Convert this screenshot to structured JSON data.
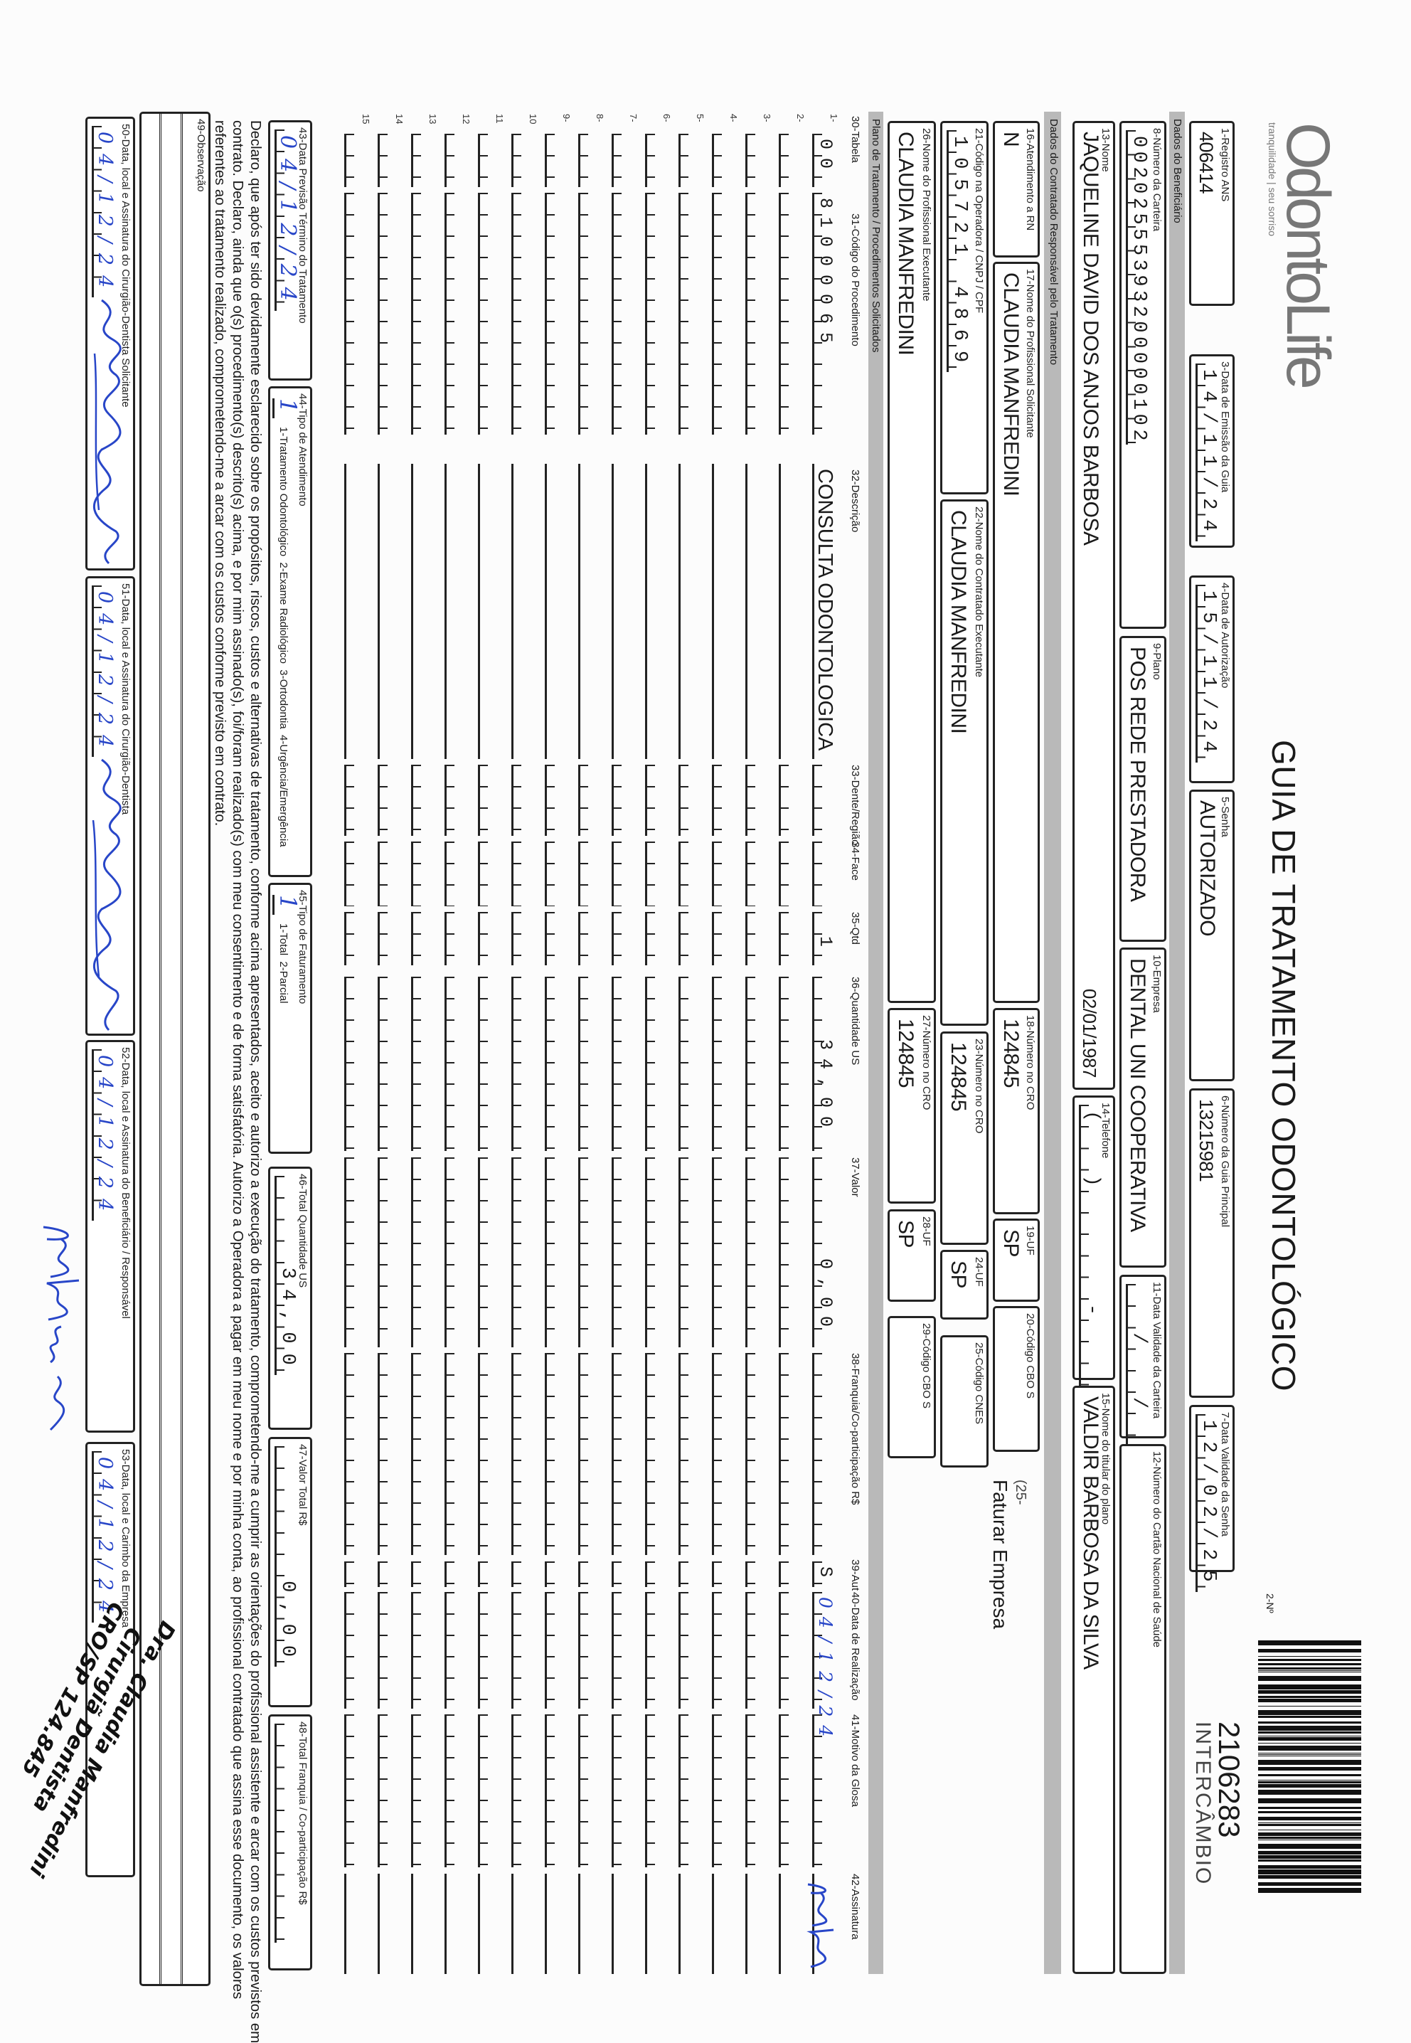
{
  "header": {
    "logo": "OdontoLife",
    "logo_tagline": "tranquilidade | seu sorriso",
    "title": "GUIA DE TRATAMENTO ODONTOLÓGICO",
    "number_label": "2-Nº",
    "guide_number": "2106283",
    "guide_type": "INTERCÂMBIO",
    "registro_ans": {
      "label": "1-Registro ANS",
      "value": "406414"
    },
    "data_emissao": {
      "label": "3-Data de Emissão da Guia",
      "value": "14/11/24"
    },
    "data_autorizacao": {
      "label": "4-Data de Autorização",
      "value": "15/11/24"
    },
    "senha": {
      "label": "5-Senha",
      "value": "AUTORIZADO"
    },
    "guia_principal": {
      "label": "6-Número da Guia Principal",
      "value": "13215981"
    },
    "validade_senha": {
      "label": "7-Data Validade da Senha",
      "value": "12/02/25"
    }
  },
  "beneficiario": {
    "section": "Dados do Beneficiário",
    "carteira": {
      "label": "8-Número da Carteira",
      "value": "00202555393200000102"
    },
    "plano": {
      "label": "9-Plano",
      "value": "POS REDE PRESTADORA"
    },
    "empresa": {
      "label": "10-Empresa",
      "value": "DENTAL UNI COOPERATIVA"
    },
    "validade_carteira": {
      "label": "11-Data Validade da Carteira",
      "value": "  /  /  "
    },
    "cns": {
      "label": "12-Número do Cartão Nacional de Saúde",
      "value": ""
    },
    "nome": {
      "label": "13-Nome",
      "value": "JAQUELINE DAVID DOS ANJOS BARBOSA"
    },
    "nascimento": "02/01/1987",
    "telefone": {
      "label": "14-Telefone",
      "value": "(  )     -    "
    },
    "titular": {
      "label": "15-Nome do titular do plano",
      "value": "VALDIR BARBOSA DA SILVA"
    }
  },
  "contratado": {
    "section": "Dados do Contratado Responsável pelo Tratamento",
    "rn": {
      "label": "16-Atendimento a RN",
      "value": "N"
    },
    "solicitante": {
      "label": "17-Nome do Profissional Solicitante",
      "value": "CLAUDIA MANFREDINI"
    },
    "cro_solicitante": {
      "label": "18-Número no CRO",
      "value": "124845"
    },
    "uf_solicitante": {
      "label": "19-UF",
      "value": "SP"
    },
    "cbo_solicitante": {
      "label": "20-Código CBO S",
      "value": ""
    },
    "note_code": "(25-",
    "note": "Faturar Empresa",
    "codigo_operadora": {
      "label": "21-Código na Operadora / CNPJ / CPF",
      "value": "105721 4869"
    },
    "contratado_executante": {
      "label": "22-Nome do Contratado Executante",
      "value": "CLAUDIA MANFREDINI"
    },
    "cro_contratado": {
      "label": "23-Número no CRO",
      "value": "124845"
    },
    "uf_contratado": {
      "label": "24-UF",
      "value": "SP"
    },
    "cnes": {
      "label": "25-Código CNES",
      "value": ""
    },
    "executante": {
      "label": "26-Nome do Profissional Executante",
      "value": "CLAUDIA MANFREDINI"
    },
    "cro_executante": {
      "label": "27-Número no CRO",
      "value": "124845"
    },
    "uf_executante": {
      "label": "28-UF",
      "value": "SP"
    },
    "cbo_executante": {
      "label": "29-Código CBO S",
      "value": ""
    }
  },
  "plano_tratamento": {
    "section": "Plano de Tratamento / Procedimentos Solicitados",
    "columns": [
      "30-Tabela",
      "31-Código do Procedimento",
      "32-Descrição",
      "33-Dente/Região",
      "34-Face",
      "35-Qtd",
      "36-Quantidade US",
      "37-Valor",
      "38-Franquia/Co-participação R$",
      "39-Aut",
      "40-Data de Realização",
      "41-Motivo da Glosa",
      "42-Assinatura"
    ],
    "rows": [
      {
        "number": "1-",
        "tabela": "00",
        "codigo": "81000065",
        "descricao": "CONSULTA ODONTOLOGICA",
        "dente": "",
        "face": "",
        "qtd": " 1",
        "qtd_us": "   34,00",
        "valor": "     0,00",
        "franquia": "",
        "aut": "S",
        "data": "04/12/24",
        "glosa": "",
        "assinatura": "paulin"
      },
      {
        "number": "2-"
      },
      {
        "number": "3-"
      },
      {
        "number": "4-"
      },
      {
        "number": "5-"
      },
      {
        "number": "6-"
      },
      {
        "number": "7-"
      },
      {
        "number": "8-"
      },
      {
        "number": "9-"
      },
      {
        "number": "10"
      },
      {
        "number": "11"
      },
      {
        "number": "12"
      },
      {
        "number": "13"
      },
      {
        "number": "14"
      },
      {
        "number": "15"
      }
    ]
  },
  "totais": {
    "previsao": {
      "label": "43-Data Previsão Término do Tratamento",
      "value": "04/12/24"
    },
    "tipo_atendimento": {
      "label": "44-Tipo de Atendimento",
      "value": "1",
      "options": "1-Tratamento Odontológico  2-Exame Radiológico  3-Ortodontia  4-Urgência/Emergência"
    },
    "tipo_faturamento": {
      "label": "45-Tipo de Faturamento",
      "value": "1",
      "options": "1-Total  2-Parcial"
    },
    "total_us": {
      "label": "46-Total Quantidade US",
      "value": "    34,00"
    },
    "valor_total": {
      "label": "47-Valor Total R$",
      "value": "      0,00"
    },
    "total_franquia": {
      "label": "48-Total Franquia / Co-participação R$",
      "value": ""
    }
  },
  "declaracao": [
    "Declaro, que após ter sido devidamente esclarecido sobre os propósitos, riscos, custos e alternativas de tratamento, conforme acima apresentados, aceito e autorizo a execução do tratamento, comprometendo-me a cumprir as orientações do profissional assistente e arcar com os custos previstos em",
    "contrato. Declaro, ainda que o(s) procedimento(s) descrito(s) acima, e por mim assinado(s), foi/foram realizado(s) com meu consentimento e de forma satisfatória. Autorizo a Operadora a pagar em meu nome e por minha conta, ao profissional contratado que assina esse documento, os valores",
    "referentes ao tratamento realizado, comprometendo-me a arcar com os custos conforme previsto em contrato."
  ],
  "observacao": {
    "label": "49-Observação",
    "value": ""
  },
  "assinaturas": {
    "solicitante": {
      "label": "50-Data, local e Assinatura do Cirurgião-Dentista Solicitante",
      "date": "04/12/24",
      "signature": "Claudia Manfredini"
    },
    "dentista": {
      "label": "51-Data, local e Assinatura do Cirurgião-Dentista",
      "date": "04/12/24",
      "signature": "Claudia Manfredini"
    },
    "beneficiario": {
      "label": "52-Data, local e Assinatura do Beneficiário / Responsável",
      "date": "04/12/24",
      "signature": "paulina esteves"
    },
    "empresa": {
      "label": "53-Data, local e Carimbo da Empresa",
      "date": "04/12/24"
    }
  },
  "carimbo": [
    "Dra. Claudia Manfredini",
    "Cirurgiã Dentista",
    "CRO/SP 124.845"
  ],
  "colors": {
    "ink": "#2846c8",
    "band": "#b9b9b9",
    "logo": "#777777"
  }
}
